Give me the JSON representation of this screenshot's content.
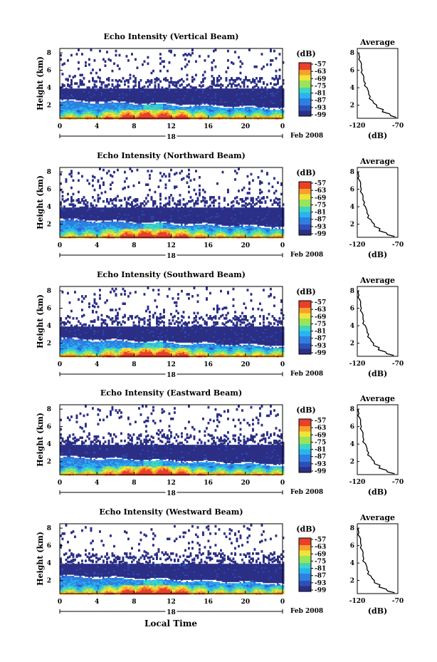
{
  "figure": {
    "bottom_xlabel": "Local Time",
    "colorbar_unit": "(dB)",
    "colorbar_ticks": [
      "-57",
      "-63",
      "-69",
      "-75",
      "-81",
      "-87",
      "-93",
      "-99"
    ],
    "colormap": [
      "#2b2f85",
      "#2f4fb8",
      "#2f7fe0",
      "#28b4f0",
      "#3fd6c0",
      "#9ae45a",
      "#f0e43a",
      "#f8a02a",
      "#e8402a"
    ],
    "line_color": "#000000"
  },
  "chart_data": [
    {
      "type": "heatmap",
      "title": "Echo Intensity (Vertical Beam)",
      "ylabel": "Height (km)",
      "xlabel": "",
      "x_ticks": [
        "0",
        "4",
        "8",
        "12",
        "16",
        "20",
        "0"
      ],
      "x_range": [
        0,
        24
      ],
      "y_ticks": [
        "2",
        "4",
        "6",
        "8"
      ],
      "y_range": [
        0.5,
        8.5
      ],
      "date_center": "18",
      "date_right": "Feb 2008",
      "value_range_db": [
        -99,
        -57
      ],
      "profile": {
        "title": "Average",
        "xlabel": "(dB)",
        "x_ticks": [
          "-120",
          "-70"
        ],
        "y_ticks": [
          "2",
          "4",
          "6",
          "8"
        ],
        "x_range": [
          -120,
          -70
        ],
        "y_range": [
          0.5,
          8.5
        ],
        "height_km": [
          0.6,
          1.0,
          1.5,
          2.0,
          2.5,
          3.0,
          3.5,
          4.0,
          4.5,
          5.0,
          5.5,
          6.0,
          6.5,
          7.0,
          7.5,
          8.0
        ],
        "values_db": [
          -72,
          -80,
          -88,
          -96,
          -101,
          -104,
          -106,
          -108,
          -110,
          -112,
          -113,
          -114,
          -115,
          -116,
          -117,
          -118
        ]
      }
    },
    {
      "type": "heatmap",
      "title": "Echo Intensity (Northward Beam)",
      "ylabel": "Height (km)",
      "xlabel": "",
      "x_ticks": [
        "0",
        "4",
        "8",
        "12",
        "16",
        "20",
        "0"
      ],
      "x_range": [
        0,
        24
      ],
      "y_ticks": [
        "2",
        "4",
        "6",
        "8"
      ],
      "y_range": [
        0.5,
        8.5
      ],
      "date_center": "18",
      "date_right": "Feb 2008",
      "value_range_db": [
        -99,
        -57
      ],
      "profile": {
        "title": "Average",
        "xlabel": "(dB)",
        "x_ticks": [
          "-120",
          "-70"
        ],
        "y_ticks": [
          "2",
          "4",
          "6",
          "8"
        ],
        "x_range": [
          -120,
          -70
        ],
        "y_range": [
          0.5,
          8.5
        ],
        "height_km": [
          0.6,
          1.0,
          1.5,
          2.0,
          2.5,
          3.0,
          3.5,
          4.0,
          4.5,
          5.0,
          5.5,
          6.0,
          6.5,
          7.0,
          7.5,
          8.0
        ],
        "values_db": [
          -74,
          -84,
          -92,
          -99,
          -103,
          -106,
          -108,
          -110,
          -111,
          -113,
          -114,
          -115,
          -116,
          -117,
          -118,
          -119
        ]
      }
    },
    {
      "type": "heatmap",
      "title": "Echo Intensity (Southward Beam)",
      "ylabel": "Height (km)",
      "xlabel": "",
      "x_ticks": [
        "0",
        "4",
        "8",
        "12",
        "16",
        "20",
        "0"
      ],
      "x_range": [
        0,
        24
      ],
      "y_ticks": [
        "2",
        "4",
        "6",
        "8"
      ],
      "y_range": [
        0.5,
        8.5
      ],
      "date_center": "18",
      "date_right": "Feb 2008",
      "value_range_db": [
        -99,
        -57
      ],
      "profile": {
        "title": "Average",
        "xlabel": "(dB)",
        "x_ticks": [
          "-120",
          "-70"
        ],
        "y_ticks": [
          "2",
          "4",
          "6",
          "8"
        ],
        "x_range": [
          -120,
          -70
        ],
        "y_range": [
          0.5,
          8.5
        ],
        "height_km": [
          0.6,
          1.0,
          1.5,
          2.0,
          2.5,
          3.0,
          3.5,
          4.0,
          4.5,
          5.0,
          5.5,
          6.0,
          6.5,
          7.0,
          7.5,
          8.0
        ],
        "values_db": [
          -75,
          -85,
          -93,
          -100,
          -104,
          -106,
          -108,
          -110,
          -112,
          -113,
          -114,
          -115,
          -116,
          -117,
          -118,
          -119
        ]
      }
    },
    {
      "type": "heatmap",
      "title": "Echo Intensity (Eastward Beam)",
      "ylabel": "Height (km)",
      "xlabel": "",
      "x_ticks": [
        "0",
        "4",
        "8",
        "12",
        "16",
        "20",
        "0"
      ],
      "x_range": [
        0,
        24
      ],
      "y_ticks": [
        "2",
        "4",
        "6",
        "8"
      ],
      "y_range": [
        0.5,
        8.5
      ],
      "date_center": "18",
      "date_right": "Feb 2008",
      "value_range_db": [
        -99,
        -57
      ],
      "profile": {
        "title": "Average",
        "xlabel": "(dB)",
        "x_ticks": [
          "-120",
          "-70"
        ],
        "y_ticks": [
          "2",
          "4",
          "6",
          "8"
        ],
        "x_range": [
          -120,
          -70
        ],
        "y_range": [
          0.5,
          8.5
        ],
        "height_km": [
          0.6,
          1.0,
          1.5,
          2.0,
          2.5,
          3.0,
          3.5,
          4.0,
          4.5,
          5.0,
          5.5,
          6.0,
          6.5,
          7.0,
          7.5,
          8.0
        ],
        "values_db": [
          -74,
          -84,
          -92,
          -99,
          -103,
          -106,
          -108,
          -110,
          -112,
          -113,
          -114,
          -115,
          -116,
          -117,
          -118,
          -119
        ]
      }
    },
    {
      "type": "heatmap",
      "title": "Echo Intensity (Westward Beam)",
      "ylabel": "Height (km)",
      "xlabel": "",
      "x_ticks": [
        "0",
        "4",
        "8",
        "12",
        "16",
        "20",
        "0"
      ],
      "x_range": [
        0,
        24
      ],
      "y_ticks": [
        "2",
        "4",
        "6",
        "8"
      ],
      "y_range": [
        0.5,
        8.5
      ],
      "date_center": "18",
      "date_right": "Feb 2008",
      "value_range_db": [
        -99,
        -57
      ],
      "profile": {
        "title": "Average",
        "xlabel": "(dB)",
        "x_ticks": [
          "-120",
          "-70"
        ],
        "y_ticks": [
          "2",
          "4",
          "6",
          "8"
        ],
        "x_range": [
          -120,
          -70
        ],
        "y_range": [
          0.5,
          8.5
        ],
        "height_km": [
          0.6,
          1.0,
          1.5,
          2.0,
          2.5,
          3.0,
          3.5,
          4.0,
          4.5,
          5.0,
          5.5,
          6.0,
          6.5,
          7.0,
          7.5,
          8.0
        ],
        "values_db": [
          -74,
          -84,
          -92,
          -99,
          -103,
          -106,
          -108,
          -110,
          -112,
          -113,
          -114,
          -115,
          -116,
          -117,
          -118,
          -119
        ]
      }
    }
  ]
}
